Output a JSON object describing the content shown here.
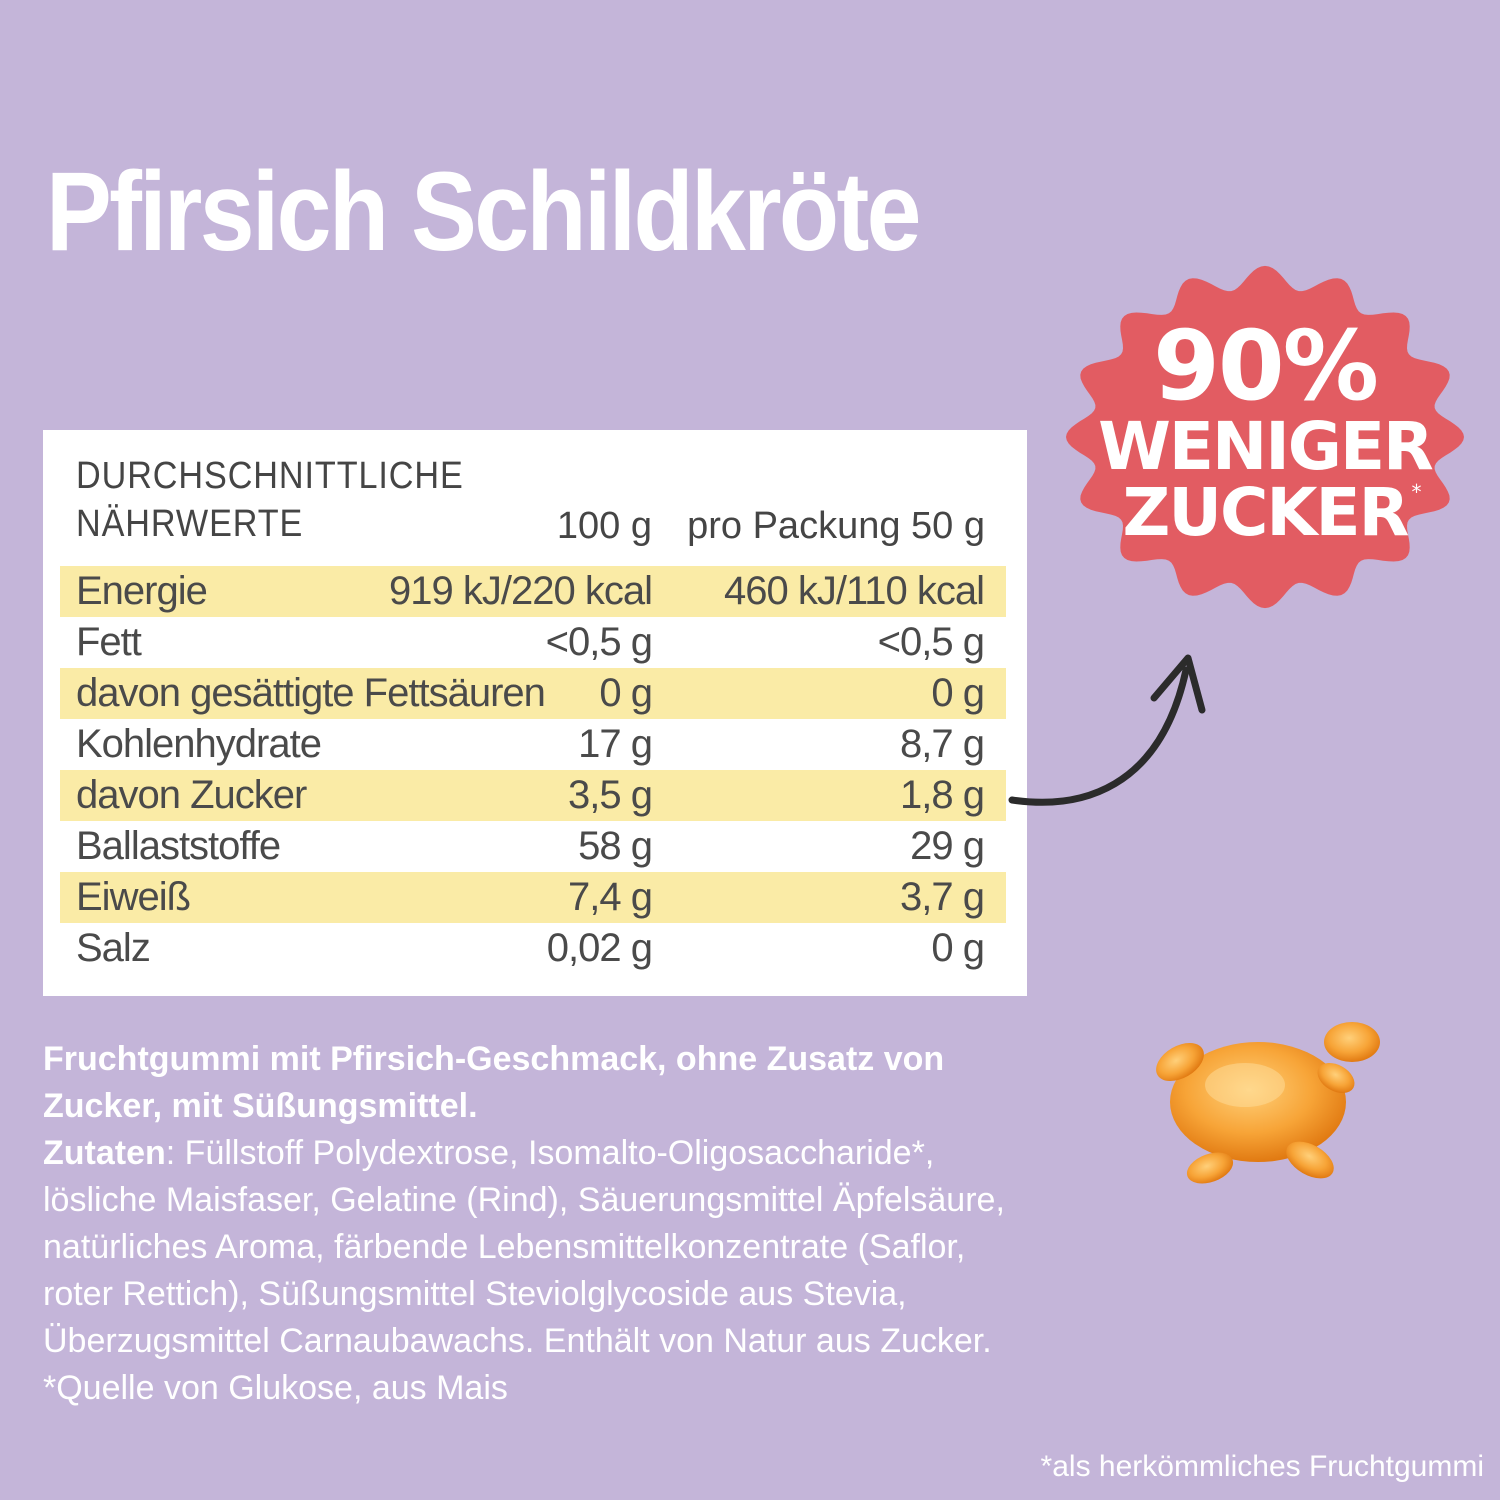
{
  "title": "Pfirsich Schildkröte",
  "badge": {
    "percent": "90%",
    "line2": "WENIGER",
    "line3": "ZUCKER",
    "star": "*",
    "color": "#e25c62"
  },
  "table": {
    "heading_line1": "DURCHSCHNITTLICHE",
    "heading_line2": "NÄHRWERTE",
    "col_100": "100 g",
    "col_pack": "pro Packung 50 g",
    "rows": [
      {
        "label": "Energie",
        "per100": "919 kJ/220 kcal",
        "perPack": "460 kJ/110 kcal"
      },
      {
        "label": "Fett",
        "per100": "<0,5 g",
        "perPack": "<0,5 g"
      },
      {
        "label": "davon gesättigte Fettsäuren",
        "per100": "0 g",
        "perPack": "0 g"
      },
      {
        "label": "Kohlenhydrate",
        "per100": "17 g",
        "perPack": "8,7 g"
      },
      {
        "label": "davon Zucker",
        "per100": "3,5 g",
        "perPack": "1,8 g"
      },
      {
        "label": "Ballaststoffe",
        "per100": "58 g",
        "perPack": "29 g"
      },
      {
        "label": "Eiweiß",
        "per100": "7,4 g",
        "perPack": "3,7 g"
      },
      {
        "label": "Salz",
        "per100": "0,02 g",
        "perPack": "0 g"
      }
    ]
  },
  "description": {
    "intro": "Fruchtgummi mit Pfirsich-Geschmack, ohne Zusatz von Zucker, mit Süßungsmittel.",
    "ingredients_label": "Zutaten",
    "ingredients_text": ": Füllstoff Polydextrose, Isomalto-Oligosaccharide*, lösliche Maisfaser, Gelatine (Rind), Säuerungsmittel Äpfelsäure, natürliches Aroma, färbende Lebensmittelkonzentrate (Saflor, roter Rettich), Süßungsmittel Steviolglycoside aus Stevia, Überzugsmittel Carnaubawachs. Enthält von Natur aus Zucker. *Quelle von Glukose, aus Mais"
  },
  "footnote": "*als herkömmliches Fruchtgummi",
  "colors": {
    "background": "#c4b5d9",
    "highlight": "#faeba6",
    "text": "#4a4a4a"
  }
}
